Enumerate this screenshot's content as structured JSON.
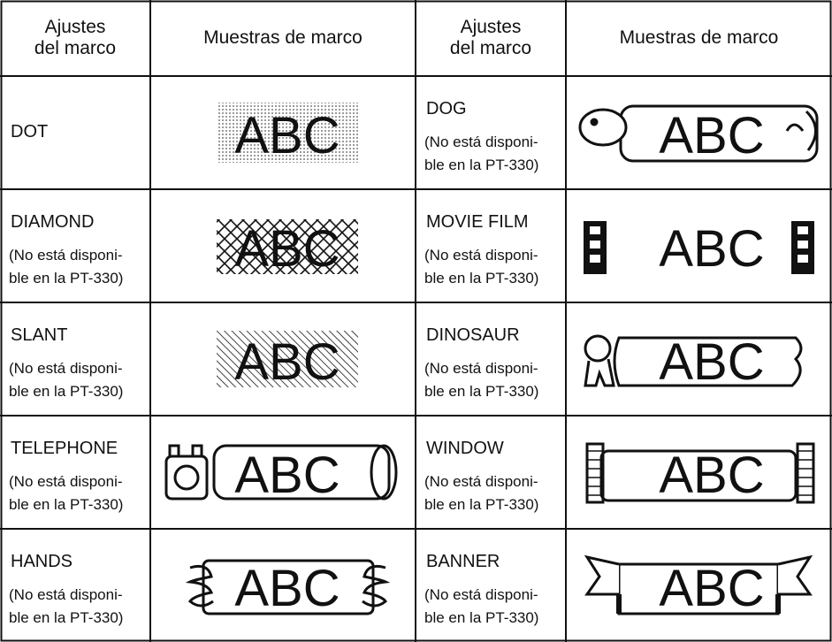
{
  "table": {
    "headers": [
      {
        "lines": [
          "Ajustes",
          "del marco"
        ]
      },
      {
        "lines": [
          "Muestras de marco"
        ]
      },
      {
        "lines": [
          "Ajustes",
          "del marco"
        ]
      },
      {
        "lines": [
          "Muestras de marco"
        ]
      }
    ],
    "rows": [
      {
        "left": {
          "name": "DOT",
          "sample": "ABC"
        },
        "right": {
          "name": "DOG",
          "note": [
            "(No está disponi-",
            "ble en la PT-330)"
          ],
          "sample": "ABC"
        }
      },
      {
        "left": {
          "name": "DIAMOND",
          "note": [
            "(No está disponi-",
            "ble en la PT-330)"
          ],
          "sample": "ABC"
        },
        "right": {
          "name": "MOVIE FILM",
          "note": [
            "(No está disponi-",
            "ble en la PT-330)"
          ],
          "sample": "ABC"
        }
      },
      {
        "left": {
          "name": "SLANT",
          "note": [
            "(No está disponi-",
            "ble en la PT-330)"
          ],
          "sample": "ABC"
        },
        "right": {
          "name": "DINOSAUR",
          "note": [
            "(No está disponi-",
            "ble en la PT-330)"
          ],
          "sample": "ABC"
        }
      },
      {
        "left": {
          "name": "TELEPHONE",
          "note": [
            "(No está disponi-",
            "ble en la PT-330)"
          ],
          "sample": "ABC"
        },
        "right": {
          "name": "WINDOW",
          "note": [
            "(No está disponi-",
            "ble en la PT-330)"
          ],
          "sample": "ABC"
        }
      },
      {
        "left": {
          "name": "HANDS",
          "note": [
            "(No está disponi-",
            "ble en la PT-330)"
          ],
          "sample": "ABC"
        },
        "right": {
          "name": "BANNER",
          "note": [
            "(No está disponi-",
            "ble en la PT-330)"
          ],
          "sample": "ABC"
        }
      }
    ]
  }
}
